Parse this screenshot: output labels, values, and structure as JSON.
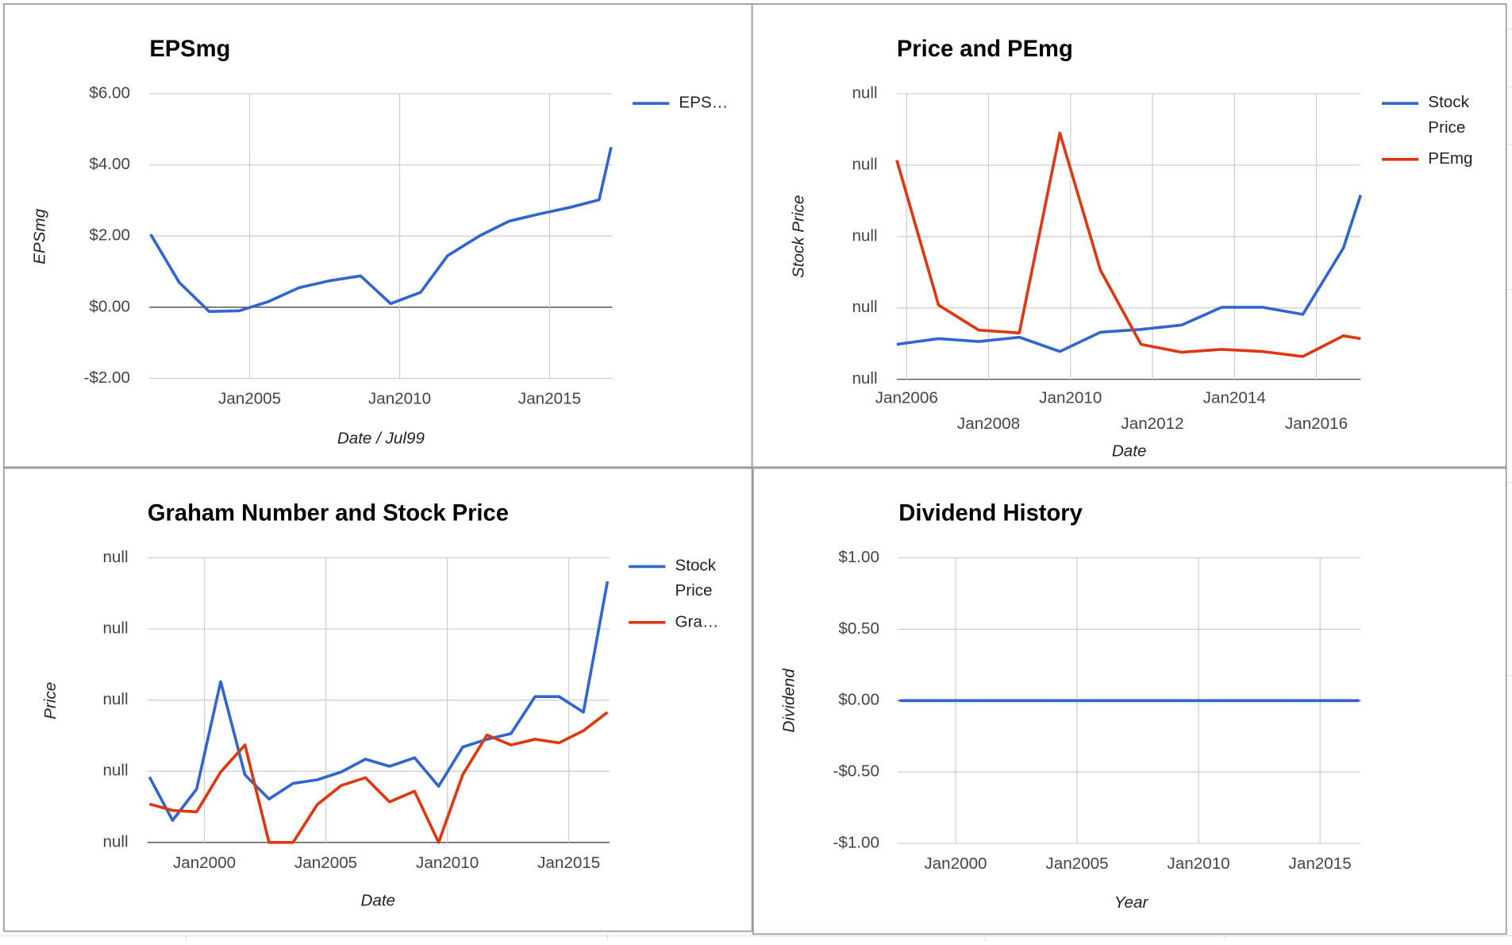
{
  "chart_data": [
    {
      "type": "line",
      "title": "EPSmg",
      "y_label": "EPSmg",
      "x_label": "Date / Jul99",
      "x": [
        2001.7,
        2002.65,
        2003.65,
        2004.65,
        2005.6,
        2006.65,
        2007.7,
        2008.7,
        2009.7,
        2010.7,
        2011.6,
        2012.65,
        2013.65,
        2014.65,
        2015.65,
        2016.65,
        2017.05
      ],
      "series": [
        {
          "name": "EPS…",
          "color": "#3366cc",
          "values": [
            2.05,
            0.7,
            -0.12,
            -0.1,
            0.15,
            0.55,
            0.75,
            0.88,
            0.1,
            0.42,
            1.45,
            2.0,
            2.42,
            2.62,
            2.8,
            3.02,
            4.5
          ]
        }
      ],
      "xlim": [
        2001.66,
        2017.09
      ],
      "xticks": [
        {
          "value": 2005,
          "label": "Jan2005"
        },
        {
          "value": 2010,
          "label": "Jan2010"
        },
        {
          "value": 2015,
          "label": "Jan2015"
        }
      ],
      "ylim": [
        -2,
        6
      ],
      "yticks": [
        {
          "value": -2,
          "label": "-$2.00"
        },
        {
          "value": 0,
          "label": "$0.00"
        },
        {
          "value": 2,
          "label": "$2.00"
        },
        {
          "value": 4,
          "label": "$4.00"
        },
        {
          "value": 6,
          "label": "$6.00"
        }
      ],
      "grid": true,
      "legend": "right"
    },
    {
      "type": "line",
      "title": "Price and PEmg",
      "y_label": "Stock Price",
      "x_label": "Date",
      "x": [
        2005.76,
        2006.78,
        2007.76,
        2008.75,
        2009.74,
        2010.73,
        2011.72,
        2012.71,
        2013.69,
        2014.68,
        2015.67,
        2016.66,
        2017.08
      ],
      "series": [
        {
          "name": "Stock Price",
          "color": "#3366cc",
          "values": [
            0.49,
            0.57,
            0.53,
            0.59,
            0.39,
            0.66,
            0.7,
            0.76,
            1.01,
            1.01,
            0.91,
            1.84,
            2.58
          ]
        },
        {
          "name": "PEmg",
          "color": "#dc3912",
          "values": [
            3.07,
            1.04,
            0.69,
            0.65,
            3.45,
            1.53,
            0.49,
            0.38,
            0.42,
            0.39,
            0.32,
            0.61,
            0.57
          ]
        }
      ],
      "xlim": [
        2005.76,
        2017.08
      ],
      "xticks": [
        {
          "value": 2006,
          "label": "Jan2006"
        },
        {
          "value": 2008,
          "label": "Jan2008"
        },
        {
          "value": 2010,
          "label": "Jan2010"
        },
        {
          "value": 2012,
          "label": "Jan2012"
        },
        {
          "value": 2014,
          "label": "Jan2014"
        },
        {
          "value": 2016,
          "label": "Jan2016"
        }
      ],
      "ylim": [
        0,
        4
      ],
      "yticks": [
        {
          "value": 0,
          "label": "null"
        },
        {
          "value": 1,
          "label": "null"
        },
        {
          "value": 2,
          "label": "null"
        },
        {
          "value": 3,
          "label": "null"
        },
        {
          "value": 4,
          "label": "null"
        }
      ],
      "grid": true,
      "legend": "right"
    },
    {
      "type": "line",
      "title": "Graham Number and Stock Price",
      "y_label": "Price",
      "x_label": "Date",
      "x": [
        1997.74,
        1998.69,
        1999.68,
        2000.67,
        2001.67,
        2002.66,
        2003.65,
        2004.64,
        2005.63,
        2006.63,
        2007.62,
        2008.65,
        2009.64,
        2010.63,
        2011.63,
        2012.62,
        2013.61,
        2014.6,
        2015.6,
        2016.59
      ],
      "series": [
        {
          "name": "Stock Price",
          "color": "#3366cc",
          "values": [
            0.92,
            0.31,
            0.75,
            2.26,
            0.95,
            0.61,
            0.83,
            0.88,
            0.99,
            1.17,
            1.07,
            1.19,
            0.79,
            1.34,
            1.45,
            1.53,
            2.05,
            2.05,
            1.83,
            3.67
          ]
        },
        {
          "name": "Gra…",
          "color": "#dc3912",
          "values": [
            0.54,
            0.45,
            0.43,
            0.99,
            1.37,
            0,
            0,
            0.53,
            0.8,
            0.91,
            0.57,
            0.72,
            0,
            0.95,
            1.51,
            1.37,
            1.45,
            1.4,
            1.57,
            1.83
          ]
        }
      ],
      "xlim": [
        1997.66,
        2016.67
      ],
      "xticks": [
        {
          "value": 2000,
          "label": "Jan2000"
        },
        {
          "value": 2005,
          "label": "Jan2005"
        },
        {
          "value": 2010,
          "label": "Jan2010"
        },
        {
          "value": 2015,
          "label": "Jan2015"
        }
      ],
      "ylim": [
        0,
        4
      ],
      "yticks": [
        {
          "value": 0,
          "label": "null"
        },
        {
          "value": 1,
          "label": "null"
        },
        {
          "value": 2,
          "label": "null"
        },
        {
          "value": 3,
          "label": "null"
        },
        {
          "value": 4,
          "label": "null"
        }
      ],
      "grid": true,
      "legend": "right"
    },
    {
      "type": "line",
      "title": "Dividend History",
      "y_label": "Dividend",
      "x_label": "Year",
      "x": [
        1997.7,
        1998.7,
        1999.7,
        2000.7,
        2001.7,
        2002.7,
        2003.7,
        2004.7,
        2005.7,
        2006.7,
        2007.7,
        2008.7,
        2009.7,
        2010.7,
        2011.7,
        2012.7,
        2013.7,
        2014.7,
        2015.7,
        2016.6
      ],
      "series": [
        {
          "color": "#3366cc",
          "values": [
            0,
            0,
            0,
            0,
            0,
            0,
            0,
            0,
            0,
            0,
            0,
            0,
            0,
            0,
            0,
            0,
            0,
            0,
            0,
            0
          ]
        }
      ],
      "xlim": [
        1997.62,
        2016.67
      ],
      "xticks": [
        {
          "value": 2000,
          "label": "Jan2000"
        },
        {
          "value": 2005,
          "label": "Jan2005"
        },
        {
          "value": 2010,
          "label": "Jan2010"
        },
        {
          "value": 2015,
          "label": "Jan2015"
        }
      ],
      "ylim": [
        -1,
        1
      ],
      "yticks": [
        {
          "value": -1,
          "label": "-$1.00"
        },
        {
          "value": -0.5,
          "label": "-$0.50"
        },
        {
          "value": 0,
          "label": "$0.00"
        },
        {
          "value": 0.5,
          "label": "$0.50"
        },
        {
          "value": 1,
          "label": "$1.00"
        }
      ],
      "grid": true
    }
  ]
}
